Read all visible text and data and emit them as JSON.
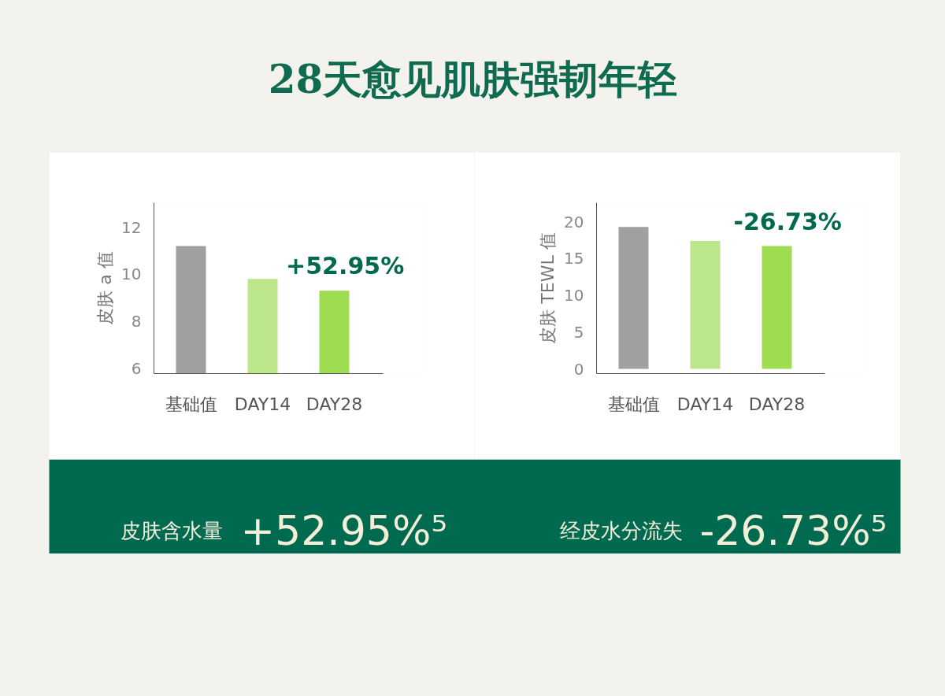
{
  "chart_data": [
    {
      "type": "other",
      "title": "28天愈见肌肤强韧年轻"
    },
    {
      "type": "bar",
      "ylabel": "皮肤 a 值",
      "categories": [
        "基础值",
        "DAY14",
        "DAY28"
      ],
      "values": [
        11.2,
        9.8,
        9.3
      ],
      "colors": [
        "#a0a0a0",
        "#bce68a",
        "#9edc52"
      ],
      "ylim": [
        5.78,
        13.04
      ],
      "yticks": [
        6,
        8,
        10,
        12
      ],
      "grid": false,
      "annotations": [
        "+52.95%"
      ]
    },
    {
      "type": "bar",
      "ylabel": "皮肤 TEWL 值",
      "categories": [
        "基础值",
        "DAY14",
        "DAY28"
      ],
      "values": [
        19.3,
        17.4,
        16.7
      ],
      "colors": [
        "#a0a0a0",
        "#bce68a",
        "#9edc52"
      ],
      "ylim": [
        -0.64,
        22.6
      ],
      "yticks": [
        0,
        5,
        10,
        15,
        20
      ],
      "grid": false,
      "annotations": [
        "-26.73%"
      ]
    },
    {
      "type": "other",
      "annotations": [
        "皮肤含水量",
        "+52.95%⁵",
        "经皮水分流失",
        "-26.73%⁵"
      ]
    }
  ]
}
